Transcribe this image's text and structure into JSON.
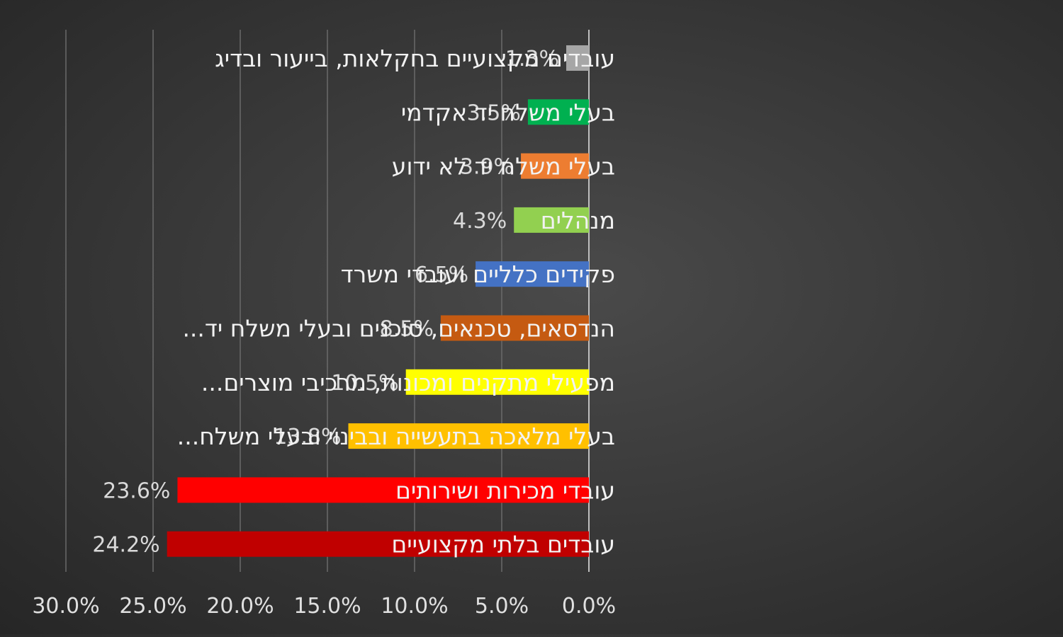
{
  "chart_data": {
    "type": "bar",
    "orientation": "horizontal-reversed",
    "title": "",
    "xlabel": "",
    "ylabel": "",
    "xlim": [
      0,
      30
    ],
    "grid": true,
    "ticks": [
      "30.0%",
      "25.0%",
      "20.0%",
      "15.0%",
      "10.0%",
      "5.0%",
      "0.0%"
    ],
    "categories": [
      "עובדים מקצועיים בחקלאות, בייעור ובדיג",
      "בעלי משלח יד אקדמי",
      "בעלי משלח יד לא ידוע",
      "מנהלים",
      "פקידים כלליים ועובדי משרד",
      "הנדסאים, טכנאים, סוכנים ובעלי משלח יד...",
      "מפעילי מתקנים ומכונות, מרכיבי מוצרים...",
      "בעלי מלאכה בתעשייה ובבינוי ובעלי משלח...",
      "עובדי מכירות ושירותים",
      "עובדים בלתי מקצועיים"
    ],
    "values": [
      1.3,
      3.5,
      3.9,
      4.3,
      6.5,
      8.5,
      10.5,
      13.8,
      23.6,
      24.2
    ],
    "value_labels": [
      "1.3%",
      "3.5%",
      "3.9%",
      "4.3%",
      "6.5%",
      "8.5%",
      "10.5%",
      "13.8%",
      "23.6%",
      "24.2%"
    ],
    "colors": [
      "#a6a6a6",
      "#00b050",
      "#ed7d31",
      "#92d050",
      "#4472c4",
      "#c55a11",
      "#ffff00",
      "#ffc000",
      "#ff0000",
      "#c00000"
    ]
  }
}
